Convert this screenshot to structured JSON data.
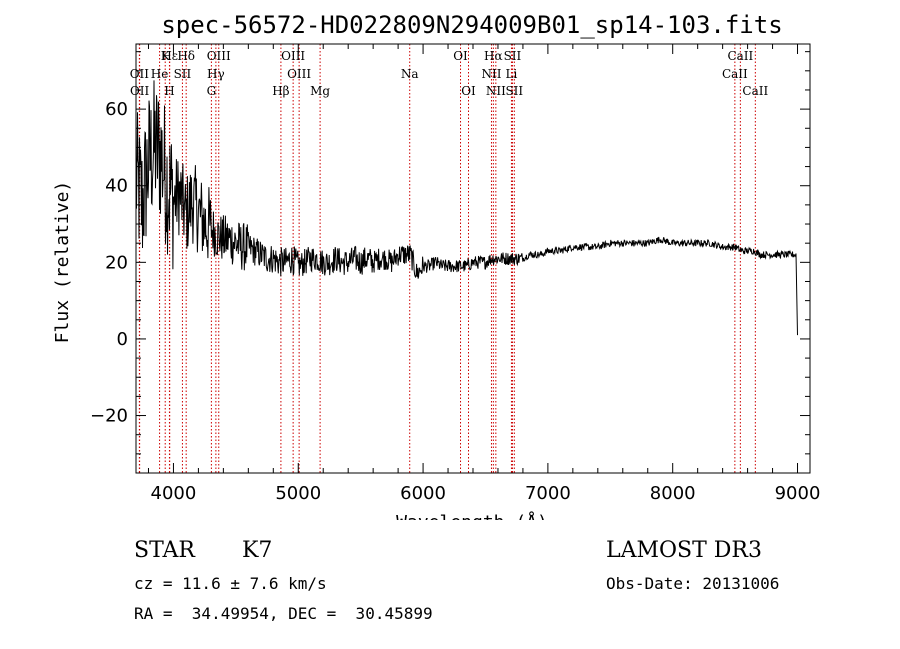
{
  "chart_data": {
    "type": "line",
    "title": "spec-56572-HD022809N294009B01_sp14-103.fits",
    "xlabel": "Wavelength (Å)",
    "ylabel": "Flux (relative)",
    "xlim": [
      3700,
      9100
    ],
    "ylim": [
      -35,
      77
    ],
    "x_ticks": [
      4000,
      5000,
      6000,
      7000,
      8000,
      9000
    ],
    "y_ticks": [
      -20,
      0,
      20,
      40,
      60
    ],
    "series": [
      {
        "name": "flux",
        "x": [
          3700,
          3750,
          3800,
          3850,
          3900,
          3950,
          4000,
          4050,
          4100,
          4150,
          4200,
          4250,
          4300,
          4350,
          4400,
          4450,
          4500,
          4550,
          4600,
          4650,
          4700,
          4750,
          4800,
          4850,
          4900,
          4950,
          5000,
          5050,
          5100,
          5150,
          5200,
          5250,
          5300,
          5350,
          5400,
          5450,
          5500,
          5550,
          5600,
          5650,
          5700,
          5750,
          5800,
          5850,
          5900,
          5950,
          6000,
          6050,
          6100,
          6150,
          6200,
          6250,
          6300,
          6350,
          6400,
          6450,
          6500,
          6550,
          6600,
          6650,
          6700,
          6750,
          6800,
          6850,
          6900,
          6950,
          7000,
          7100,
          7200,
          7300,
          7400,
          7500,
          7600,
          7700,
          7800,
          7900,
          8000,
          8100,
          8200,
          8300,
          8400,
          8500,
          8550,
          8600,
          8650,
          8700,
          8750,
          8800,
          8850,
          8900,
          8950,
          8990,
          9000
        ],
        "y": [
          42,
          35,
          46,
          50,
          48,
          41,
          36,
          38,
          32,
          36,
          33,
          30,
          29,
          27,
          26,
          26,
          25,
          24,
          24,
          23,
          22,
          21,
          21,
          20,
          20,
          21,
          19,
          20,
          21,
          21,
          20,
          20,
          21,
          20,
          20,
          21,
          20,
          21,
          20,
          21,
          21,
          20,
          22,
          22,
          22,
          17,
          19,
          19,
          20,
          19,
          19,
          19,
          19,
          19,
          20,
          20,
          20,
          21,
          21,
          21,
          21,
          21,
          21,
          22,
          22,
          22,
          23,
          23,
          24,
          24,
          24,
          25,
          25,
          25,
          25,
          26,
          25,
          25,
          25,
          25,
          24,
          24,
          23,
          23,
          23,
          22,
          22,
          22,
          22,
          22,
          22,
          22,
          1
        ]
      }
    ],
    "line_markers": [
      {
        "label": "Hε",
        "wavelength": 3970,
        "row": 1
      },
      {
        "label": "K",
        "wavelength": 3934,
        "row": 1
      },
      {
        "label": "Hδ",
        "wavelength": 4102,
        "row": 1
      },
      {
        "label": "OIII",
        "wavelength": 4363,
        "row": 1
      },
      {
        "label": "OIII",
        "wavelength": 4959,
        "row": 1
      },
      {
        "label": "OI",
        "wavelength": 6300,
        "row": 1
      },
      {
        "label": "Hα",
        "wavelength": 6563,
        "row": 1
      },
      {
        "label": "SII",
        "wavelength": 6716,
        "row": 1
      },
      {
        "label": "CaII",
        "wavelength": 8542,
        "row": 1
      },
      {
        "label": "OII",
        "wavelength": 3727,
        "row": 2
      },
      {
        "label": "He",
        "wavelength": 3889,
        "row": 2
      },
      {
        "label": "SII",
        "wavelength": 4072,
        "row": 2
      },
      {
        "label": "Hγ",
        "wavelength": 4340,
        "row": 2
      },
      {
        "label": "OIII",
        "wavelength": 5007,
        "row": 2
      },
      {
        "label": "Na",
        "wavelength": 5893,
        "row": 2
      },
      {
        "label": "NII",
        "wavelength": 6548,
        "row": 2
      },
      {
        "label": "Li",
        "wavelength": 6708,
        "row": 2
      },
      {
        "label": "CaII",
        "wavelength": 8498,
        "row": 2
      },
      {
        "label": "OII",
        "wavelength": 3729,
        "row": 3
      },
      {
        "label": "H",
        "wavelength": 3968,
        "row": 3
      },
      {
        "label": "G",
        "wavelength": 4304,
        "row": 3
      },
      {
        "label": "Hβ",
        "wavelength": 4861,
        "row": 3
      },
      {
        "label": "Mg",
        "wavelength": 5175,
        "row": 3
      },
      {
        "label": "OI",
        "wavelength": 6364,
        "row": 3
      },
      {
        "label": "NII",
        "wavelength": 6583,
        "row": 3
      },
      {
        "label": "SII",
        "wavelength": 6731,
        "row": 3
      },
      {
        "label": "CaII",
        "wavelength": 8662,
        "row": 3
      }
    ]
  },
  "info": {
    "object_class": "STAR",
    "subclass": "K7",
    "survey": "LAMOST DR3",
    "cz_text": "cz = 11.6 ± 7.6 km/s",
    "obs_date_text": "Obs-Date: 20131006",
    "radec_text": "RA =  34.49954, DEC =  30.45899"
  },
  "colors": {
    "axis": "#000000",
    "spectrum": "#000000",
    "line_marker": "#cc0000"
  }
}
